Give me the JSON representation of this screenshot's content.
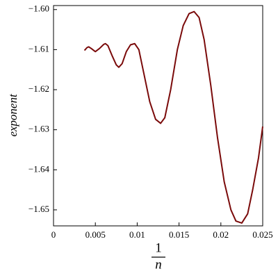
{
  "chart_data": {
    "type": "line",
    "xlabel": {
      "numerator": "1",
      "denominator": "n"
    },
    "ylabel": "exponent",
    "x": [
      0.0037,
      0.004,
      0.0042,
      0.0045,
      0.005,
      0.0055,
      0.006,
      0.0062,
      0.0065,
      0.007,
      0.0075,
      0.0078,
      0.0082,
      0.0087,
      0.0092,
      0.0097,
      0.0102,
      0.0108,
      0.0115,
      0.0122,
      0.0128,
      0.0133,
      0.014,
      0.0148,
      0.0155,
      0.0162,
      0.0168,
      0.0174,
      0.018,
      0.0188,
      0.0196,
      0.0204,
      0.0212,
      0.0218,
      0.0225,
      0.0232,
      0.0238,
      0.0245,
      0.025
    ],
    "series": [
      {
        "color": "#7a0a0a",
        "values": [
          -1.6102,
          -1.6095,
          -1.6093,
          -1.6097,
          -1.6105,
          -1.6097,
          -1.6087,
          -1.6085,
          -1.609,
          -1.6115,
          -1.6138,
          -1.6144,
          -1.6135,
          -1.6105,
          -1.6088,
          -1.6085,
          -1.61,
          -1.616,
          -1.623,
          -1.6274,
          -1.6284,
          -1.627,
          -1.62,
          -1.61,
          -1.604,
          -1.601,
          -1.6005,
          -1.602,
          -1.6075,
          -1.619,
          -1.632,
          -1.643,
          -1.65,
          -1.6528,
          -1.6533,
          -1.651,
          -1.645,
          -1.637,
          -1.6292
        ]
      }
    ],
    "xlim": [
      0,
      0.025
    ],
    "ylim": [
      -1.654,
      -1.599
    ],
    "xticks": [
      0,
      0.005,
      0.01,
      0.015,
      0.02,
      0.025
    ],
    "yticks": [
      {
        "value": -1.6,
        "label": "−1.60"
      },
      {
        "value": -1.61,
        "label": "−1.61"
      },
      {
        "value": -1.62,
        "label": "−1.62"
      },
      {
        "value": -1.63,
        "label": "−1.63"
      },
      {
        "value": -1.64,
        "label": "−1.64"
      },
      {
        "value": -1.65,
        "label": "−1.65"
      }
    ]
  }
}
